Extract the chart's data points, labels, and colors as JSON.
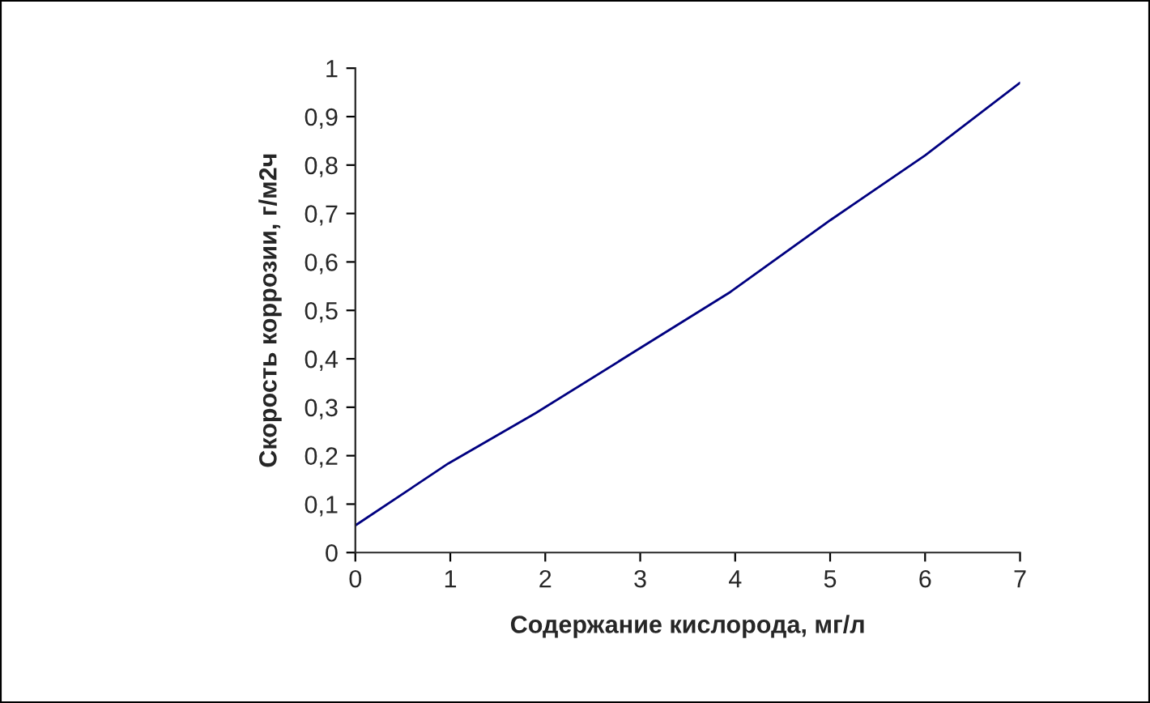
{
  "chart_data": {
    "type": "line",
    "xlabel": "Содержание кислорода, мг/л",
    "ylabel": "Скорость коррозии, г/м2ч",
    "series": [
      {
        "color": "#000080",
        "x": [
          0,
          0.98,
          1.9,
          2.9,
          3.95,
          5.0,
          6.0,
          7.0
        ],
        "values": [
          0.056,
          0.184,
          0.288,
          0.41,
          0.538,
          0.686,
          0.82,
          0.97
        ]
      }
    ],
    "xlim": [
      0,
      7
    ],
    "xticks": [
      0,
      1,
      2,
      3,
      4,
      5,
      6,
      7
    ],
    "ylim": [
      0,
      1
    ],
    "yticks": [
      0,
      {
        "value": 0.1,
        "label": "0,1"
      },
      {
        "value": 0.2,
        "label": "0,2"
      },
      {
        "value": 0.3,
        "label": "0,3"
      },
      {
        "value": 0.4,
        "label": "0,4"
      },
      {
        "value": 0.5,
        "label": "0,5"
      },
      {
        "value": 0.6,
        "label": "0,6"
      },
      {
        "value": 0.7,
        "label": "0,7"
      },
      {
        "value": 0.8,
        "label": "0,8"
      },
      {
        "value": 0.9,
        "label": "0,9"
      },
      1
    ],
    "grid": false,
    "legend": false,
    "marker": "none",
    "line_style": "solid"
  }
}
